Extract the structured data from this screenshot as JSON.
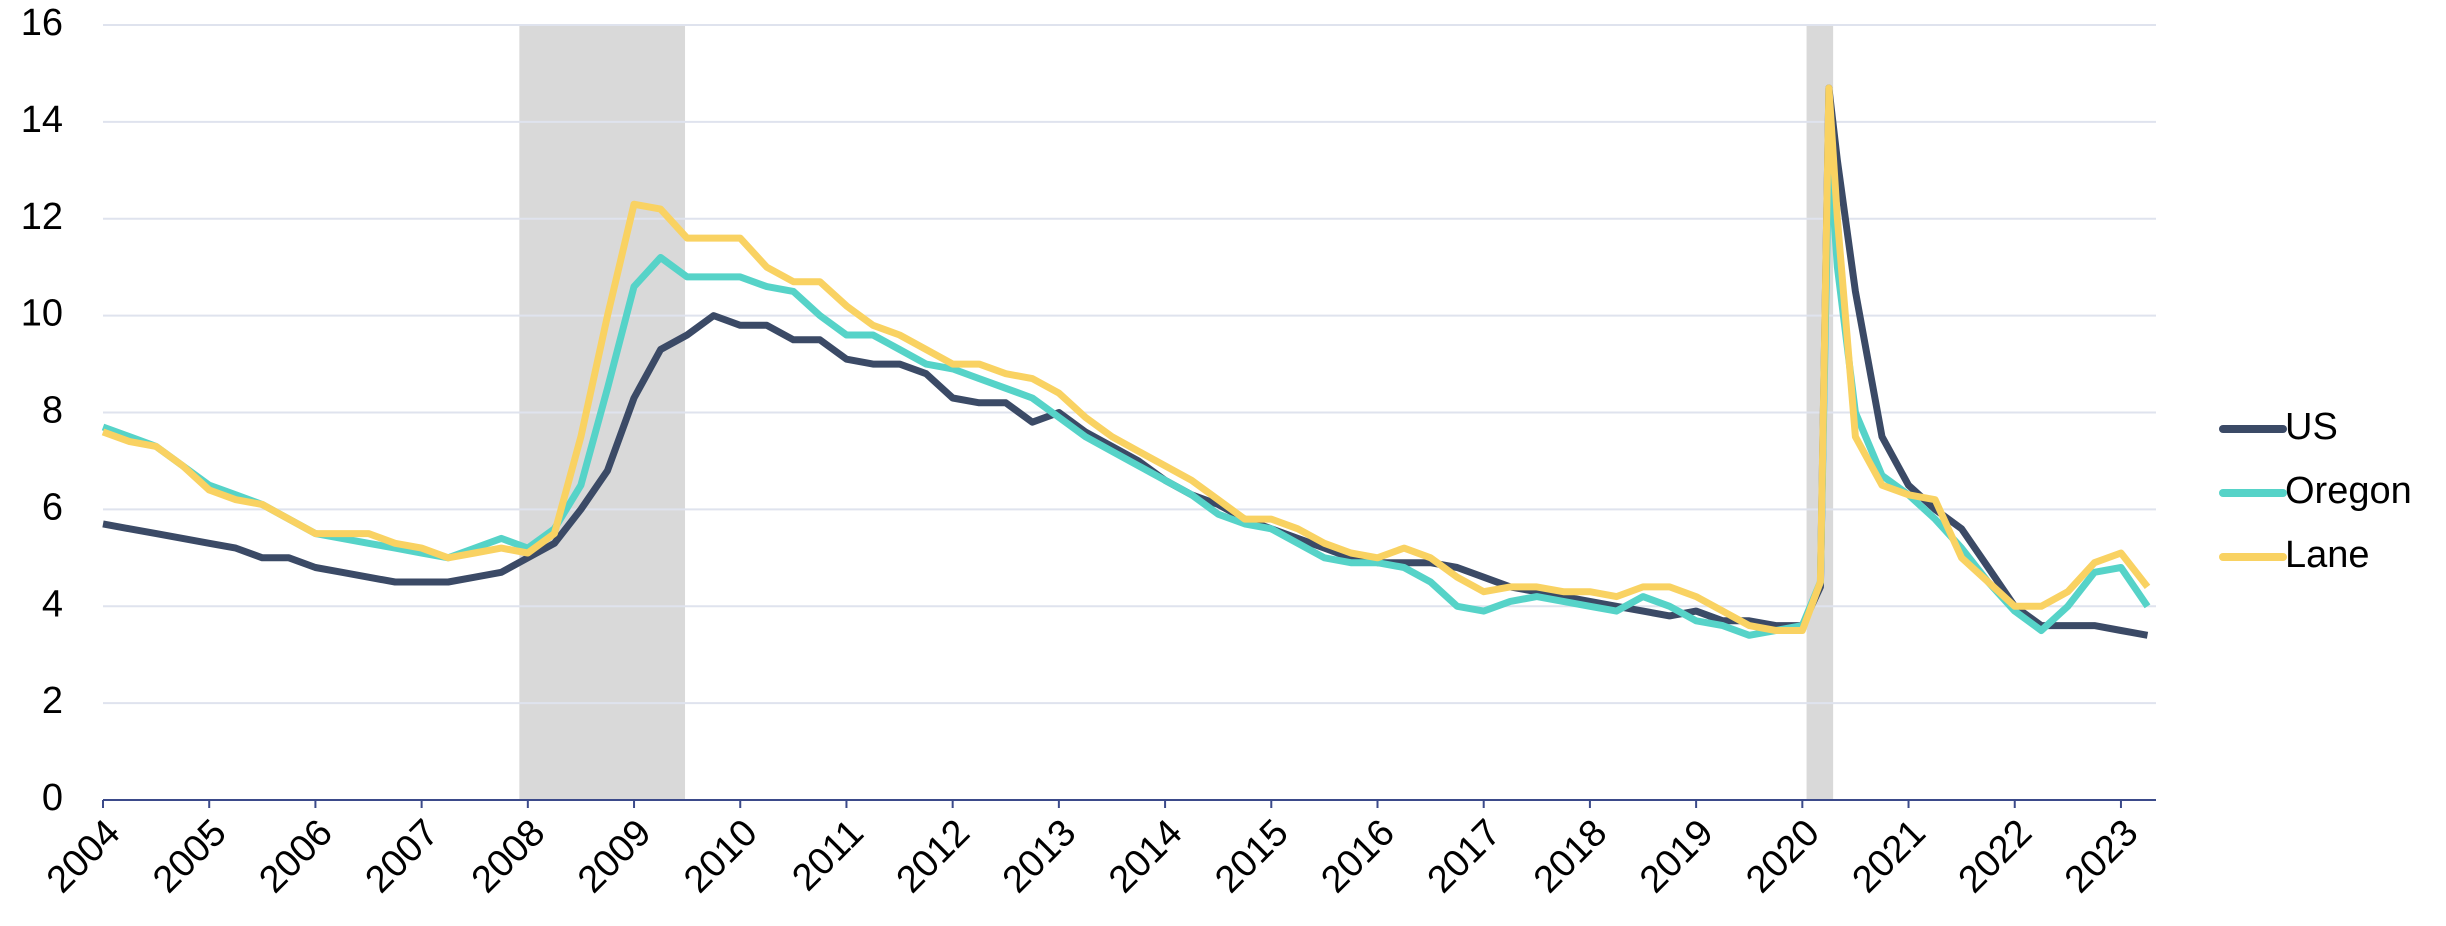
{
  "chart_data": {
    "type": "line",
    "x": [
      2004,
      2004.25,
      2004.5,
      2004.75,
      2005,
      2005.25,
      2005.5,
      2005.75,
      2006,
      2006.25,
      2006.5,
      2006.75,
      2007,
      2007.25,
      2007.5,
      2007.75,
      2008,
      2008.25,
      2008.5,
      2008.75,
      2009,
      2009.25,
      2009.5,
      2009.75,
      2010,
      2010.25,
      2010.5,
      2010.75,
      2011,
      2011.25,
      2011.5,
      2011.75,
      2012,
      2012.25,
      2012.5,
      2012.75,
      2013,
      2013.25,
      2013.5,
      2013.75,
      2014,
      2014.25,
      2014.5,
      2014.75,
      2015,
      2015.25,
      2015.5,
      2015.75,
      2016,
      2016.25,
      2016.5,
      2016.75,
      2017,
      2017.25,
      2017.5,
      2017.75,
      2018,
      2018.25,
      2018.5,
      2018.75,
      2019,
      2019.25,
      2019.5,
      2019.75,
      2020,
      2020.17,
      2020.25,
      2020.33,
      2020.5,
      2020.75,
      2021,
      2021.25,
      2021.5,
      2021.75,
      2022,
      2022.25,
      2022.5,
      2022.75,
      2023,
      2023.25
    ],
    "series": [
      {
        "name": "US",
        "color": "#3b4a66",
        "values": [
          5.7,
          5.6,
          5.5,
          5.4,
          5.3,
          5.2,
          5.0,
          5.0,
          4.8,
          4.7,
          4.6,
          4.5,
          4.5,
          4.5,
          4.6,
          4.7,
          5.0,
          5.3,
          6.0,
          6.8,
          8.3,
          9.3,
          9.6,
          10.0,
          9.8,
          9.8,
          9.5,
          9.5,
          9.1,
          9.0,
          9.0,
          8.8,
          8.3,
          8.2,
          8.2,
          7.8,
          8.0,
          7.6,
          7.3,
          7.0,
          6.6,
          6.3,
          6.1,
          5.8,
          5.6,
          5.4,
          5.2,
          5.0,
          4.9,
          4.9,
          4.9,
          4.8,
          4.6,
          4.4,
          4.3,
          4.2,
          4.1,
          4.0,
          3.9,
          3.8,
          3.9,
          3.7,
          3.7,
          3.6,
          3.6,
          4.4,
          14.7,
          13.2,
          10.5,
          7.5,
          6.5,
          6.0,
          5.6,
          4.8,
          4.0,
          3.6,
          3.6,
          3.6,
          3.5,
          3.4
        ]
      },
      {
        "name": "Oregon",
        "color": "#56d3c8",
        "values": [
          7.7,
          7.5,
          7.3,
          6.9,
          6.5,
          6.3,
          6.1,
          5.8,
          5.5,
          5.4,
          5.3,
          5.2,
          5.1,
          5.0,
          5.2,
          5.4,
          5.2,
          5.6,
          6.5,
          8.5,
          10.6,
          11.2,
          10.8,
          10.8,
          10.8,
          10.6,
          10.5,
          10.0,
          9.6,
          9.6,
          9.3,
          9.0,
          8.9,
          8.7,
          8.5,
          8.3,
          7.9,
          7.5,
          7.2,
          6.9,
          6.6,
          6.3,
          5.9,
          5.7,
          5.6,
          5.3,
          5.0,
          4.9,
          4.9,
          4.8,
          4.5,
          4.0,
          3.9,
          4.1,
          4.2,
          4.1,
          4.0,
          3.9,
          4.2,
          4.0,
          3.7,
          3.6,
          3.4,
          3.5,
          3.6,
          4.5,
          13.5,
          11.0,
          8.0,
          6.7,
          6.3,
          5.8,
          5.2,
          4.5,
          3.9,
          3.5,
          4.0,
          4.7,
          4.8,
          4.0
        ]
      },
      {
        "name": "Lane",
        "color": "#f9d262",
        "values": [
          7.6,
          7.4,
          7.3,
          6.9,
          6.4,
          6.2,
          6.1,
          5.8,
          5.5,
          5.5,
          5.5,
          5.3,
          5.2,
          5.0,
          5.1,
          5.2,
          5.1,
          5.5,
          7.5,
          10.0,
          12.3,
          12.2,
          11.6,
          11.6,
          11.6,
          11.0,
          10.7,
          10.7,
          10.2,
          9.8,
          9.6,
          9.3,
          9.0,
          9.0,
          8.8,
          8.7,
          8.4,
          7.9,
          7.5,
          7.2,
          6.9,
          6.6,
          6.2,
          5.8,
          5.8,
          5.6,
          5.3,
          5.1,
          5.0,
          5.2,
          5.0,
          4.6,
          4.3,
          4.4,
          4.4,
          4.3,
          4.3,
          4.2,
          4.4,
          4.4,
          4.2,
          3.9,
          3.6,
          3.5,
          3.5,
          4.5,
          14.7,
          12.0,
          7.5,
          6.5,
          6.3,
          6.2,
          5.0,
          4.5,
          4.0,
          4.0,
          4.3,
          4.9,
          5.1,
          4.4
        ]
      }
    ],
    "recessions": [
      [
        2007.92,
        2009.48
      ],
      [
        2020.04,
        2020.29
      ]
    ],
    "recession_color": "#d9d9d9",
    "xlim": [
      2004,
      2023.33
    ],
    "xticks": [
      2004,
      2005,
      2006,
      2007,
      2008,
      2009,
      2010,
      2011,
      2012,
      2013,
      2014,
      2015,
      2016,
      2017,
      2018,
      2019,
      2020,
      2021,
      2022,
      2023
    ],
    "ylim": [
      0,
      16
    ],
    "yticks": [
      0,
      2,
      4,
      6,
      8,
      10,
      12,
      14,
      16
    ],
    "grid": true,
    "legend": "right"
  }
}
